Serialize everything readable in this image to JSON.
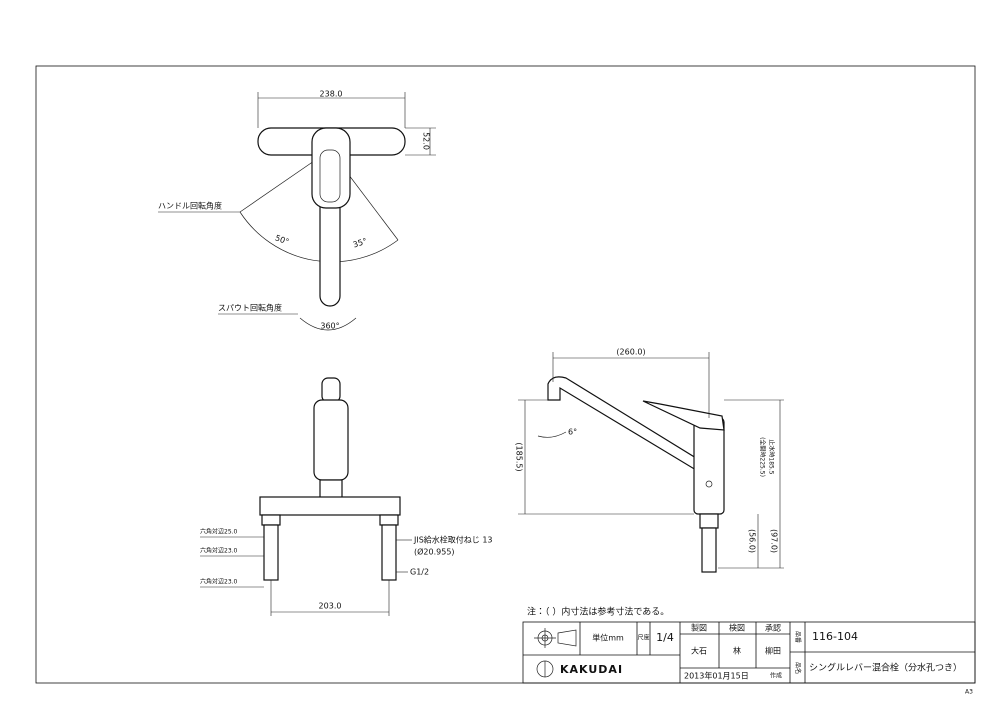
{
  "top_view": {
    "width": "238.0",
    "height": "52.0",
    "handle_label": "ハンドル回転角度",
    "angle_left": "50°",
    "angle_right": "35°",
    "spout_label": "スパウト回転角度",
    "spout_angle": "360°"
  },
  "side_view": {
    "length": "(260.0)",
    "height": "(185.5)",
    "spout_angle": "6°",
    "open_height": "(全開時225.5)",
    "closed_height": "止水時185.5",
    "leg_length": "(56.0)",
    "total_leg": "(97.0)"
  },
  "front_view": {
    "hex_1": "六角対辺25.0",
    "hex_2": "六角対辺23.0",
    "hex_3": "六角対辺23.0",
    "thread_label": "JIS給水栓取付ねじ 13",
    "thread_dia": "(Ø20.955)",
    "pipe_thread": "G1/2",
    "pitch": "203.0"
  },
  "note": "注：（ ）内寸法は参考寸法である。",
  "title_block": {
    "unit": "単位mm",
    "scale_label": "尺度",
    "scale": "1/4",
    "drafted": "製図",
    "checked": "検図",
    "approved": "承認",
    "drafter": "大石",
    "checker": "林",
    "approver": "柳田",
    "part_no_label": "品番",
    "part_no": "116-104",
    "name_label": "品名",
    "name": "シングルレバー混合栓（分水孔つき）",
    "date": "2013年01月15日",
    "created": "作成",
    "brand": "KAKUDAI"
  },
  "sheet_size": "A3"
}
